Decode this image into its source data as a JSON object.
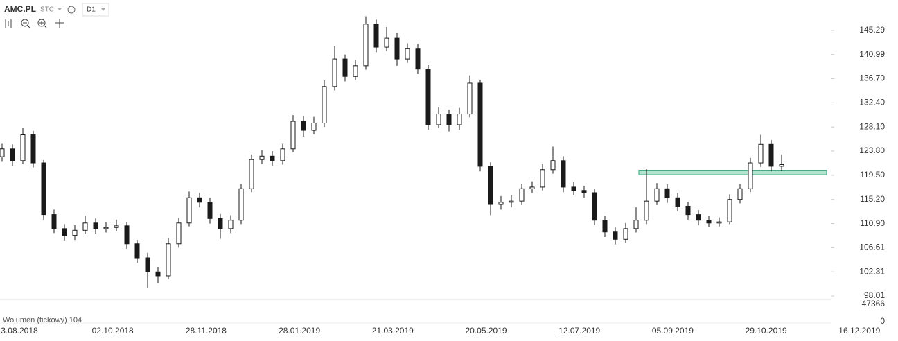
{
  "chart_data": {
    "type": "candlestick",
    "symbol": "AMC.PL",
    "source": "STC",
    "interval": "D1",
    "volume_label": "Wolumen (tickowy) 104",
    "open": [
      122.8,
      124.2,
      122.1,
      126.7,
      121.7,
      112.5,
      110.0,
      108.8,
      109.7,
      111.0,
      110.0,
      110.2,
      110.5,
      107.3,
      104.8,
      102.3,
      101.6,
      107.3,
      111.0,
      115.5,
      114.7,
      111.8,
      110.0,
      111.5,
      117.1,
      122.3,
      122.9,
      122.1,
      124.2,
      129.1,
      127.5,
      128.8,
      135.3,
      140.2,
      137.1,
      139.0,
      146.4,
      142.3,
      143.9,
      140.2,
      142.1,
      138.4,
      128.5,
      130.4,
      128.5,
      130.4,
      135.9,
      121.1,
      114.3,
      114.7,
      114.9,
      117.1,
      117.4,
      120.5,
      122.1,
      117.4,
      116.8,
      116.4,
      111.5,
      109.4,
      108.1,
      110.0,
      111.5,
      114.9,
      117.1,
      115.5,
      114.0,
      112.5,
      111.5,
      111.0,
      111.2,
      115.2,
      117.1,
      121.7,
      125.0,
      121.1
    ],
    "high": [
      125.1,
      125.0,
      128.0,
      127.4,
      122.2,
      113.4,
      110.8,
      110.6,
      112.3,
      111.8,
      111.1,
      111.6,
      111.2,
      108.0,
      105.7,
      103.2,
      108.3,
      111.9,
      116.6,
      116.4,
      115.5,
      112.6,
      112.4,
      118.0,
      123.2,
      124.0,
      123.8,
      125.1,
      130.2,
      130.0,
      129.9,
      136.4,
      142.5,
      141.0,
      140.0,
      147.8,
      147.2,
      145.9,
      144.8,
      143.0,
      142.9,
      139.1,
      131.6,
      131.2,
      131.5,
      137.3,
      136.5,
      121.8,
      115.8,
      115.9,
      118.0,
      118.4,
      121.5,
      124.6,
      122.9,
      118.3,
      117.6,
      117.1,
      112.3,
      110.2,
      111.0,
      113.8,
      120.6,
      118.1,
      117.9,
      116.4,
      114.8,
      113.3,
      112.2,
      112.0,
      116.1,
      118.0,
      122.6,
      126.7,
      125.8,
      123.2
    ],
    "low": [
      121.9,
      121.2,
      121.5,
      120.9,
      111.6,
      109.2,
      107.9,
      108.0,
      109.0,
      109.1,
      109.3,
      109.5,
      106.4,
      103.9,
      99.4,
      100.3,
      101.0,
      106.6,
      110.4,
      113.8,
      110.9,
      108.2,
      109.2,
      110.8,
      116.5,
      121.5,
      121.2,
      121.4,
      123.6,
      126.4,
      126.8,
      128.1,
      134.6,
      136.2,
      136.4,
      138.3,
      141.4,
      141.6,
      139.0,
      139.5,
      137.5,
      127.6,
      127.9,
      127.3,
      127.6,
      129.8,
      120.2,
      112.4,
      113.4,
      113.8,
      114.2,
      116.3,
      116.8,
      119.8,
      116.5,
      115.9,
      115.5,
      110.6,
      108.5,
      107.2,
      107.5,
      109.3,
      110.8,
      114.2,
      114.6,
      113.1,
      111.6,
      110.6,
      110.3,
      110.4,
      110.8,
      114.5,
      116.5,
      121.0,
      120.2,
      120.3
    ],
    "close": [
      124.2,
      122.1,
      126.7,
      121.7,
      112.5,
      110.0,
      108.8,
      109.7,
      111.0,
      110.0,
      110.2,
      110.5,
      107.3,
      104.8,
      102.3,
      101.6,
      107.3,
      111.0,
      115.5,
      114.7,
      111.8,
      110.0,
      111.5,
      117.1,
      122.3,
      122.9,
      122.1,
      124.2,
      129.1,
      127.5,
      128.8,
      135.3,
      140.2,
      137.1,
      139.0,
      146.4,
      142.3,
      143.9,
      140.2,
      142.1,
      138.4,
      128.5,
      130.4,
      128.5,
      130.4,
      135.9,
      121.1,
      114.3,
      114.7,
      114.9,
      117.1,
      117.4,
      120.5,
      122.1,
      117.4,
      116.8,
      116.4,
      111.5,
      109.4,
      108.1,
      110.0,
      111.5,
      114.9,
      117.1,
      115.5,
      114.0,
      112.5,
      111.5,
      111.0,
      111.2,
      115.2,
      117.1,
      121.7,
      125.0,
      121.1,
      121.4
    ],
    "up_color": "#ffffff",
    "down_color": "#1a1a1a",
    "wick_color": "#1a1a1a",
    "zone": {
      "top": 120.4,
      "bottom": 119.6,
      "color": "#7dd3b0"
    },
    "ylim": [
      97.4,
      150.7
    ],
    "yticks": [
      145.29,
      140.99,
      {
        "value": 136.7,
        "label": "136.70"
      },
      {
        "value": 132.4,
        "label": "132.40"
      },
      {
        "value": 128.1,
        "label": "128.10"
      },
      {
        "value": 123.8,
        "label": "123.80"
      },
      {
        "value": 119.5,
        "label": "119.50"
      },
      {
        "value": 115.2,
        "label": "115.20"
      },
      {
        "value": 110.9,
        "label": "110.90"
      },
      106.61,
      102.31,
      98.01
    ],
    "volume_ylim": [
      0,
      52000
    ],
    "volume_yticks": [
      47366,
      0
    ],
    "x_labels": [
      "3.08.2018",
      "02.10.2018",
      "28.11.2018",
      "28.01.2019",
      "21.03.2019",
      "20.05.2019",
      "12.07.2019",
      "05.09.2019",
      "29.10.2019",
      "16.12.2019"
    ]
  }
}
